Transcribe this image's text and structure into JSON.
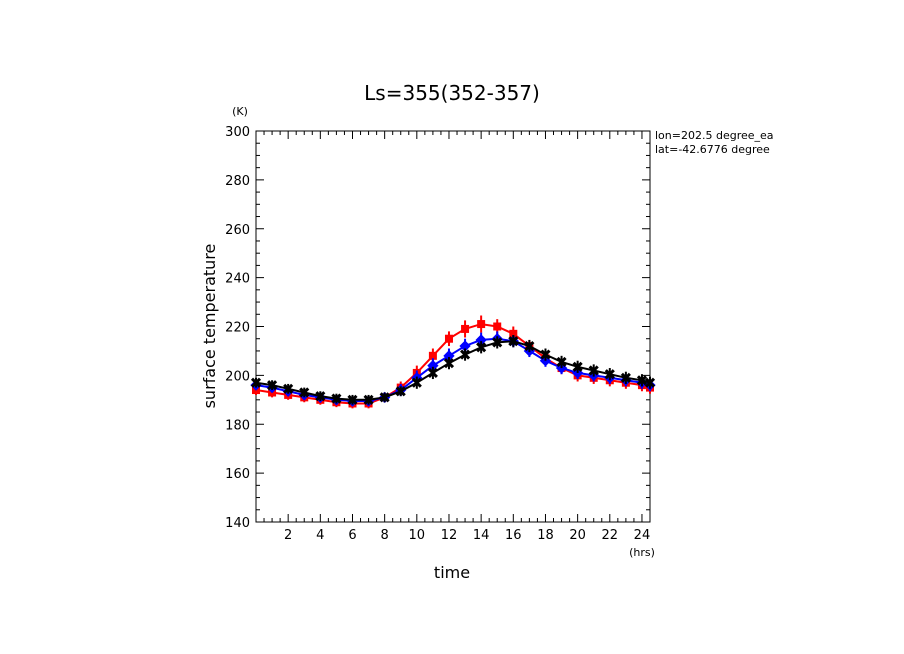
{
  "chart_data": {
    "type": "line",
    "title": "Ls=355(352-357)",
    "xlabel": "time",
    "xunit": "(hrs)",
    "ylabel": "surface temperature",
    "yunit": "(K)",
    "xlim": [
      0,
      24.5
    ],
    "ylim": [
      140,
      300
    ],
    "xticks": [
      2,
      4,
      6,
      8,
      10,
      12,
      14,
      16,
      18,
      20,
      22,
      24
    ],
    "yticks": [
      140,
      160,
      180,
      200,
      220,
      240,
      260,
      280,
      300
    ],
    "annotations": [
      "lon=202.5 degree_ea",
      "lat=-42.6776 degree"
    ],
    "grid": false,
    "x": [
      0,
      1,
      2,
      3,
      4,
      5,
      6,
      7,
      8,
      9,
      10,
      11,
      12,
      13,
      14,
      15,
      16,
      17,
      18,
      19,
      20,
      21,
      22,
      23,
      24,
      24.5
    ],
    "series": [
      {
        "color": "#ff0000",
        "values": [
          194,
          193,
          192,
          191,
          190,
          189,
          188.5,
          188.5,
          191,
          195,
          201,
          208,
          215,
          219,
          221,
          220,
          217,
          212,
          207,
          203,
          200,
          199,
          198,
          197,
          196,
          195
        ],
        "err": [
          2,
          2,
          2,
          2,
          2,
          2,
          2,
          2,
          2,
          2.5,
          3,
          3,
          3,
          3.5,
          3.5,
          3,
          3,
          2.5,
          2.5,
          2.5,
          2.5,
          2.5,
          2.5,
          2.5,
          2.5,
          2.5
        ]
      },
      {
        "color": "#0000ff",
        "values": [
          196,
          195,
          193.5,
          192,
          191,
          190,
          189.5,
          189.5,
          191,
          194,
          199,
          204,
          208,
          212,
          214.5,
          215,
          214,
          210,
          206,
          203,
          201,
          200,
          199,
          198,
          197,
          196
        ],
        "err": [
          2,
          2,
          2,
          2,
          2,
          2,
          2,
          2,
          2,
          2.5,
          3,
          3,
          3,
          3,
          3,
          3,
          2.5,
          2.5,
          2.5,
          2.5,
          2.5,
          2.5,
          2.5,
          2.5,
          2.5,
          2.5
        ]
      },
      {
        "color": "#000000",
        "values": [
          197,
          196,
          194.5,
          193,
          191.5,
          190.5,
          190,
          190,
          191,
          193.5,
          197,
          201,
          205,
          208.5,
          211.5,
          213.5,
          214,
          212,
          208.5,
          205.5,
          203.5,
          202,
          200.5,
          199,
          198,
          197
        ],
        "err": [
          2,
          2,
          2,
          2,
          2,
          2,
          2,
          2,
          2,
          2,
          2.5,
          2.5,
          2.5,
          2.5,
          2.5,
          2.5,
          2.5,
          2.5,
          2.5,
          2.5,
          2.5,
          2.5,
          2.5,
          2.5,
          2.5,
          2.5
        ]
      }
    ]
  }
}
